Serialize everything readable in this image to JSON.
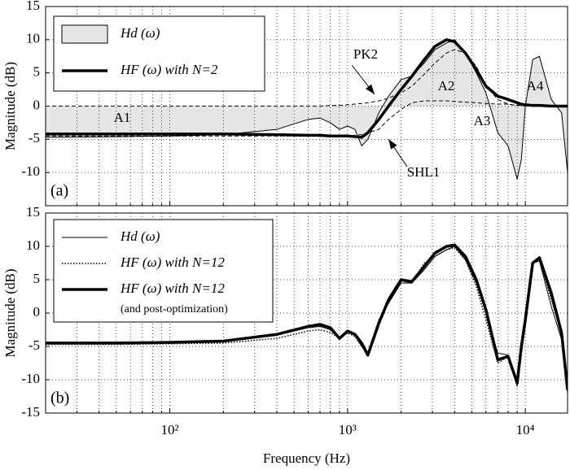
{
  "chart_data": [
    {
      "type": "line",
      "panel_label": "(a)",
      "ylabel": "Magnitude (dB)",
      "log_x": true,
      "grid": true,
      "xlim": [
        20,
        17280
      ],
      "ylim": [
        -15,
        15
      ],
      "xticks": [
        100,
        1000,
        10000
      ],
      "xminorticks": [
        30,
        40,
        50,
        60,
        70,
        80,
        90,
        200,
        300,
        400,
        500,
        600,
        700,
        800,
        900,
        2000,
        3000,
        4000,
        5000,
        6000,
        7000,
        8000,
        9000
      ],
      "yticks": [
        -10,
        -5,
        0,
        5,
        10,
        15
      ],
      "x": [
        20,
        50,
        100,
        200,
        400,
        600,
        700,
        800,
        900,
        1000,
        1100,
        1200,
        1300,
        1500,
        1700,
        2000,
        2300,
        2700,
        3100,
        3600,
        4000,
        4600,
        5300,
        6000,
        7000,
        8000,
        9000,
        9500,
        10000,
        11000,
        12000,
        14000,
        16000,
        17280
      ],
      "series": [
        {
          "name": "Hd (ω)",
          "color": "#000000",
          "fill_color": "#e6e6e6",
          "style": "solid",
          "width": 1,
          "values": [
            -4.7,
            -4.6,
            -4.5,
            -4.3,
            -3.5,
            -2,
            -1.8,
            -2.5,
            -3.5,
            -3,
            -3.5,
            -6,
            -5,
            -1,
            1.5,
            4,
            4.5,
            6.5,
            8.5,
            9.5,
            10,
            8,
            5,
            2,
            -4,
            -6,
            -11,
            -8,
            0,
            7,
            7.5,
            1,
            -1,
            -10
          ]
        },
        {
          "name": "HF (ω) with N=2",
          "color": "#000000",
          "style": "solid",
          "width": 3.5,
          "values": [
            -4.2,
            -4.2,
            -4.2,
            -4.2,
            -4.3,
            -4.4,
            -4.4,
            -4.5,
            -4.5,
            -4.5,
            -4.6,
            -4.7,
            -4,
            -2,
            0,
            2.5,
            4.5,
            7,
            9,
            10,
            9.7,
            8,
            5.5,
            3,
            1.5,
            1,
            0.5,
            0.3,
            0.2,
            0.1,
            0.1,
            0,
            0,
            0
          ]
        },
        {
          "name": "PK2",
          "in_legend": false,
          "color": "#000000",
          "style": "dashed",
          "width": 1,
          "values": [
            0,
            0,
            0,
            0,
            0,
            0,
            0,
            0.1,
            0.1,
            0.2,
            0.3,
            0.4,
            0.5,
            0.8,
            1.2,
            2,
            3,
            4.8,
            6.5,
            8,
            8.5,
            8,
            6,
            3,
            1,
            0.3,
            0.1,
            0.1,
            0,
            0,
            0,
            0,
            0,
            0
          ]
        },
        {
          "name": "SHL1",
          "in_legend": false,
          "color": "#000000",
          "style": "dashed",
          "width": 1,
          "values": [
            -4.5,
            -4.5,
            -4.5,
            -4.5,
            -4.5,
            -4.5,
            -4.5,
            -4.5,
            -4.5,
            -4.5,
            -4.4,
            -4.3,
            -4,
            -3.5,
            -2,
            -0.5,
            0.5,
            0.8,
            0.8,
            0.8,
            0.7,
            0.6,
            0.5,
            0.4,
            0.3,
            0.3,
            0.1,
            0.1,
            0,
            0,
            0,
            0,
            0,
            0
          ]
        }
      ],
      "annotations": [
        "A1",
        "A2",
        "A3",
        "A4"
      ]
    },
    {
      "type": "line",
      "panel_label": "(b)",
      "ylabel": "Magnitude (dB)",
      "xlabel": "Frequency (Hz)",
      "log_x": true,
      "grid": true,
      "xlim": [
        20,
        17280
      ],
      "ylim": [
        -15,
        15
      ],
      "xticks": [
        {
          "value": 100,
          "label": "10²"
        },
        {
          "value": 1000,
          "label": "10³"
        },
        {
          "value": 10000,
          "label": "10⁴"
        }
      ],
      "xminorticks": [
        30,
        40,
        50,
        60,
        70,
        80,
        90,
        200,
        300,
        400,
        500,
        600,
        700,
        800,
        900,
        2000,
        3000,
        4000,
        5000,
        6000,
        7000,
        8000,
        9000
      ],
      "yticks": [
        -15,
        -10,
        -5,
        0,
        5,
        10,
        15
      ],
      "x": [
        20,
        50,
        100,
        200,
        400,
        600,
        700,
        800,
        900,
        1000,
        1100,
        1200,
        1300,
        1500,
        1700,
        2000,
        2300,
        2700,
        3100,
        3600,
        4000,
        4600,
        5300,
        6000,
        7000,
        8000,
        9000,
        9500,
        10000,
        11000,
        12000,
        14000,
        16000,
        17280
      ],
      "series": [
        {
          "name": "Hd (ω)",
          "color": "#000000",
          "style": "solid",
          "width": 1,
          "values": [
            -4.6,
            -4.6,
            -4.5,
            -4.3,
            -3.3,
            -2.2,
            -2,
            -2.5,
            -3.8,
            -2.8,
            -3.3,
            -5,
            -6.3,
            -1.5,
            1.5,
            4.5,
            4.5,
            6.5,
            8.5,
            9.5,
            10,
            8,
            4.5,
            0,
            -6,
            -6.3,
            -11,
            -6,
            -1,
            7.5,
            7.8,
            1,
            -4,
            -12
          ]
        },
        {
          "name": "HF (ω) with N=12",
          "color": "#000000",
          "style": "dotted",
          "width": 1.5,
          "values": [
            -4.7,
            -4.7,
            -4.6,
            -4.5,
            -3.8,
            -2.7,
            -2.5,
            -2.9,
            -3.8,
            -3,
            -3.5,
            -5,
            -6,
            -1,
            1.5,
            4.8,
            4.5,
            7.5,
            8.5,
            9.5,
            9.8,
            8,
            4,
            -1,
            -7.5,
            -6.5,
            -10,
            -6,
            -2,
            7.5,
            8,
            2,
            -3,
            -11
          ]
        },
        {
          "name": "HF (ω) with N=12",
          "note": "(and post-optimization)",
          "color": "#000000",
          "style": "solid",
          "width": 3.5,
          "values": [
            -4.5,
            -4.5,
            -4.4,
            -4.2,
            -3.2,
            -2,
            -1.7,
            -2.2,
            -3.8,
            -2.7,
            -3.2,
            -4.5,
            -6.3,
            -1.5,
            2,
            5,
            4.7,
            7,
            9,
            10,
            10.2,
            8.5,
            5,
            0.5,
            -7,
            -6.5,
            -10.5,
            -5,
            -1,
            7.5,
            8.3,
            3,
            -3,
            -11.5
          ]
        }
      ]
    }
  ]
}
